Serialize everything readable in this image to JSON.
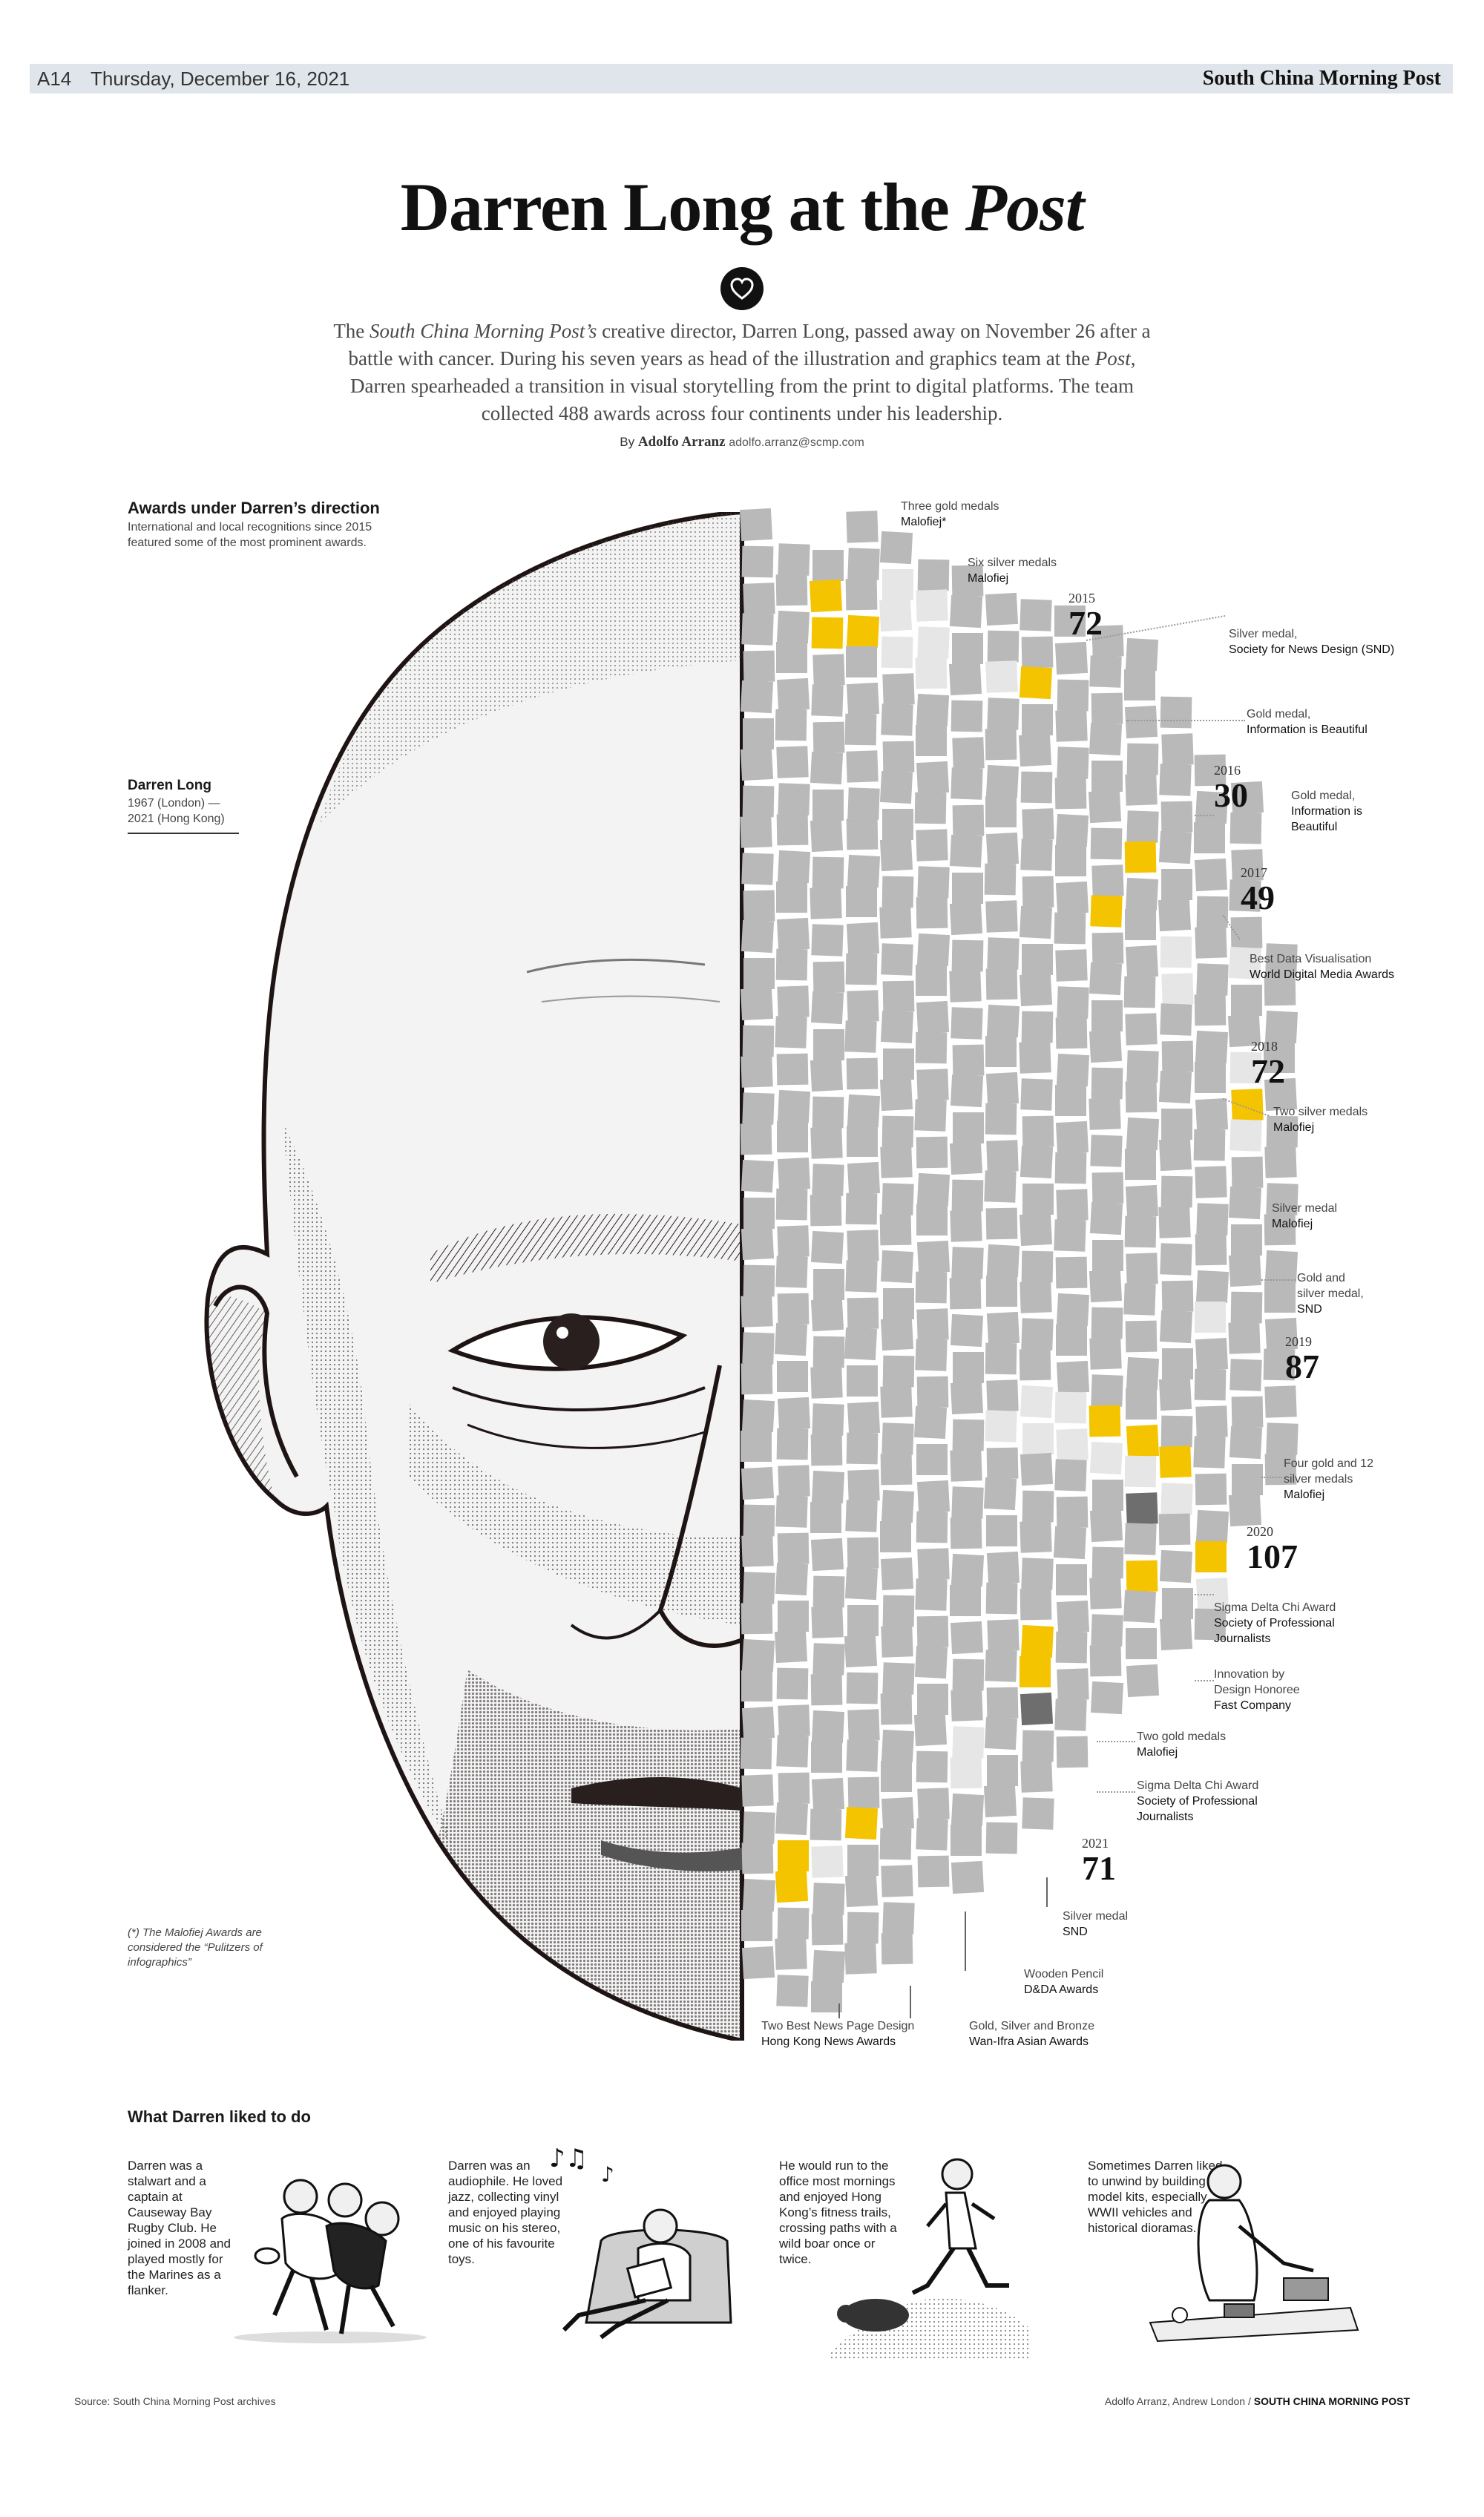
{
  "header": {
    "page": "A14",
    "date": "Thursday, December 16, 2021",
    "paper": "South China Morning Post"
  },
  "title": {
    "main": "Darren Long at the",
    "emph": "Post"
  },
  "intro": {
    "p1": "The ",
    "p1_em": "South China Morning Post’s",
    "p2": " creative director, Darren Long, passed away on November 26 after a battle with cancer. During his seven years as head of the illustration and graphics team at the ",
    "p2_em": "Post",
    "p3": ", Darren spearheaded a transition in visual storytelling from the print to digital platforms. The team collected 488 awards across four continents under his leadership."
  },
  "byline": {
    "prefix": "By",
    "author": "Adolfo Arranz",
    "email": "adolfo.arranz@scmp.com"
  },
  "awards_section": {
    "heading": "Awards under Darren’s direction",
    "subtitle": "International and local recognitions since 2015 featured some of the most prominent awards."
  },
  "subject": {
    "name": "Darren Long",
    "dates": "1967 (London) — 2021 (Hong Kong)"
  },
  "footnote": "(*) The Malofiej Awards are considered the “Pulitzers of infographics”",
  "colors": {
    "gold": "#f5c400",
    "silver": "#e6e6e6",
    "other": "#b9b9b9",
    "sdx": "#6e6e6e",
    "topbar": "#dfe5ea"
  },
  "years": [
    {
      "year": "2015",
      "count": "72"
    },
    {
      "year": "2016",
      "count": "30"
    },
    {
      "year": "2017",
      "count": "49"
    },
    {
      "year": "2018",
      "count": "72"
    },
    {
      "year": "2019",
      "count": "87"
    },
    {
      "year": "2020",
      "count": "107"
    },
    {
      "year": "2021",
      "count": "71"
    }
  ],
  "annotations": [
    {
      "line1": "Three gold medals",
      "line2": "Malofiej*"
    },
    {
      "line1": "Six silver medals",
      "line2": "Malofiej"
    },
    {
      "line1": "Silver medal,",
      "line2": "Society for News Design (SND)"
    },
    {
      "line1": "Gold medal,",
      "line2": "Information is Beautiful"
    },
    {
      "line1": "Gold medal,",
      "line2": "Information is Beautiful"
    },
    {
      "line1": "Best Data Visualisation",
      "line2": "World Digital Media Awards"
    },
    {
      "line1": "Two silver medals",
      "line2": "Malofiej"
    },
    {
      "line1": "Silver medal",
      "line2": "Malofiej"
    },
    {
      "line1": "Gold and silver medal,",
      "line2": "SND"
    },
    {
      "line1": "Four gold and 12 silver medals",
      "line2": "Malofiej"
    },
    {
      "line1": "Sigma Delta Chi Award",
      "line2": "Society of Professional Journalists"
    },
    {
      "line1": "Innovation by Design Honoree",
      "line2": "Fast Company"
    },
    {
      "line1": "Two gold medals",
      "line2": "Malofiej"
    },
    {
      "line1": "Sigma Delta Chi Award",
      "line2": "Society of Professional Journalists"
    },
    {
      "line1": "Silver medal",
      "line2": "SND"
    },
    {
      "line1": "Wooden Pencil",
      "line2": "D&DA Awards"
    },
    {
      "line1": "Two Best News Page Design",
      "line2": "Hong Kong News Awards"
    },
    {
      "line1": "Gold, Silver and Bronze",
      "line2": "Wan-Ifra Asian Awards"
    }
  ],
  "liked": {
    "heading": "What Darren liked to do",
    "items": [
      "Darren was a stalwart and a captain at Causeway Bay Rugby Club. He joined in 2008 and played mostly for the Marines as a flanker.",
      "Darren was an audiophile. He loved jazz, collecting vinyl and enjoyed playing music on his stereo, one of his favourite toys.",
      "He would run to the office most mornings and enjoyed Hong Kong’s fitness trails, crossing paths with a wild boar once or twice.",
      "Sometimes Darren liked to unwind by building model kits, especially WWII vehicles and historical dioramas."
    ]
  },
  "footer": {
    "source": "Source: South China Morning Post archives",
    "credit_names": "Adolfo Arranz, Andrew London /",
    "credit_paper": "SOUTH CHINA MORNING POST"
  }
}
